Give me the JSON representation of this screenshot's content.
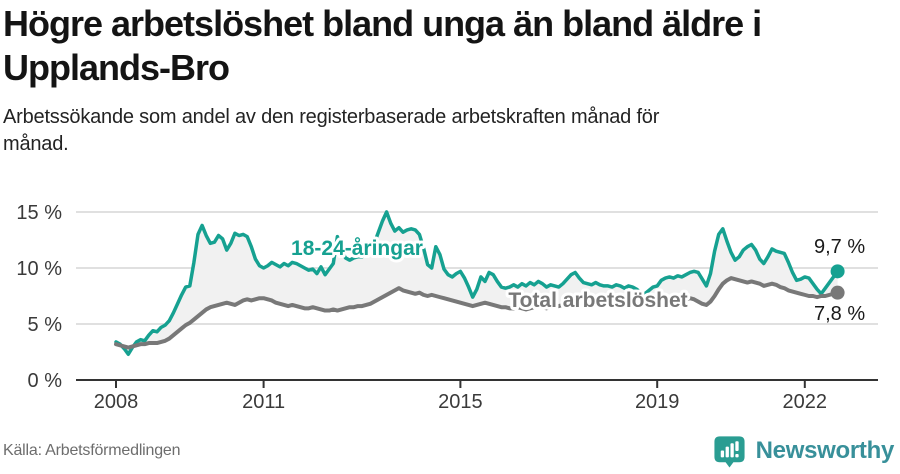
{
  "header": {
    "title_lines": [
      "Högre arbetslöshet bland unga än bland äldre i",
      "Upplands-Bro"
    ],
    "subtitle": "Arbetssökande som andel av den registerbaserade arbetskraften månad för månad."
  },
  "footer": {
    "source": "Källa: Arbetsförmedlingen",
    "brand_name": "Newsworthy",
    "brand_icon": "newsworthy-speech-bubble-bar-chart-icon"
  },
  "colors": {
    "young_line": "#16a191",
    "total_line": "#787878",
    "band_fill": "#f1f1f1",
    "grid": "#e0e0e0",
    "axis": "#333333",
    "tick_text": "#3a3a3a",
    "end_label_text": "#1a1a1a",
    "brand_icon": "#2a9d92",
    "brand_text": "#38909a"
  },
  "chart_data": {
    "type": "line",
    "title": "Högre arbetslöshet bland unga än bland äldre i Upplands-Bro",
    "subtitle": "Arbetssökande som andel av den registerbaserade arbetskraften månad för månad",
    "unit": "%",
    "x_start": "2008-01",
    "x_end": "2022-09",
    "x_frequency": "monthly",
    "ylim": [
      0,
      16
    ],
    "grid": true,
    "legend_position": "inline-labels",
    "y_ticks": [
      {
        "value": 0,
        "label": "0 %"
      },
      {
        "value": 5,
        "label": "5 %"
      },
      {
        "value": 10,
        "label": "10 %"
      },
      {
        "value": 15,
        "label": "15 %"
      }
    ],
    "x_ticks": [
      {
        "year": 2008,
        "label": "2008"
      },
      {
        "year": 2011,
        "label": "2011"
      },
      {
        "year": 2015,
        "label": "2015"
      },
      {
        "year": 2019,
        "label": "2019"
      },
      {
        "year": 2022,
        "label": "2022"
      }
    ],
    "series": [
      {
        "name": "18-24-åringar",
        "color": "#16a191",
        "end_label": "9,7 %",
        "end_value": 9.7,
        "values": [
          3.4,
          3.2,
          2.8,
          2.3,
          2.9,
          3.4,
          3.6,
          3.5,
          4.0,
          4.4,
          4.3,
          4.7,
          4.9,
          5.3,
          6.0,
          6.8,
          7.6,
          8.3,
          8.4,
          10.5,
          13.0,
          13.8,
          12.9,
          12.2,
          12.3,
          12.9,
          12.6,
          11.6,
          12.2,
          13.1,
          12.9,
          13.0,
          12.8,
          11.9,
          10.8,
          10.2,
          10.0,
          10.2,
          10.5,
          10.3,
          10.1,
          10.4,
          10.2,
          10.5,
          10.4,
          10.2,
          10.0,
          9.8,
          9.9,
          9.5,
          10.1,
          9.4,
          9.9,
          10.4,
          12.8,
          11.5,
          10.9,
          10.7,
          10.9,
          11.0,
          11.0,
          11.2,
          11.5,
          12.2,
          13.2,
          14.2,
          15.0,
          14.0,
          13.3,
          13.6,
          13.2,
          13.4,
          13.5,
          13.4,
          13.0,
          11.8,
          10.3,
          10.0,
          11.9,
          11.2,
          9.9,
          9.4,
          9.2,
          9.5,
          9.7,
          9.1,
          8.3,
          7.4,
          8.1,
          9.2,
          8.8,
          9.6,
          9.4,
          8.8,
          8.3,
          8.2,
          8.3,
          8.5,
          8.3,
          8.6,
          8.4,
          8.7,
          8.5,
          8.8,
          8.6,
          8.3,
          8.5,
          8.4,
          8.3,
          8.6,
          9.0,
          9.4,
          9.6,
          9.1,
          8.7,
          8.6,
          8.5,
          8.7,
          8.5,
          8.4,
          8.4,
          8.3,
          8.5,
          8.4,
          8.2,
          8.4,
          8.3,
          8.1,
          7.8,
          7.7,
          8.0,
          8.3,
          8.4,
          8.9,
          9.1,
          9.2,
          9.1,
          9.3,
          9.2,
          9.4,
          9.6,
          9.7,
          9.6,
          9.0,
          8.4,
          9.5,
          11.5,
          13.0,
          13.5,
          12.4,
          11.4,
          10.7,
          11.0,
          11.6,
          11.9,
          12.1,
          11.6,
          10.8,
          10.4,
          11.0,
          11.7,
          11.5,
          11.4,
          11.3,
          10.5,
          9.6,
          8.9,
          9.0,
          9.2,
          9.1,
          8.6,
          8.1,
          7.7,
          8.2,
          8.7,
          9.2,
          9.7
        ]
      },
      {
        "name": "Total arbetslöshet",
        "color": "#787878",
        "end_label": "7,8 %",
        "end_value": 7.8,
        "values": [
          3.2,
          3.1,
          3.0,
          2.9,
          3.0,
          3.1,
          3.2,
          3.2,
          3.3,
          3.3,
          3.3,
          3.4,
          3.5,
          3.7,
          4.0,
          4.3,
          4.6,
          4.9,
          5.1,
          5.4,
          5.7,
          6.0,
          6.3,
          6.5,
          6.6,
          6.7,
          6.8,
          6.9,
          6.8,
          6.7,
          6.9,
          7.1,
          7.2,
          7.1,
          7.2,
          7.3,
          7.3,
          7.2,
          7.1,
          6.9,
          6.8,
          6.7,
          6.6,
          6.7,
          6.6,
          6.5,
          6.4,
          6.4,
          6.5,
          6.4,
          6.3,
          6.2,
          6.2,
          6.3,
          6.2,
          6.3,
          6.4,
          6.5,
          6.5,
          6.6,
          6.6,
          6.7,
          6.8,
          7.0,
          7.2,
          7.4,
          7.6,
          7.8,
          8.0,
          8.2,
          8.0,
          7.9,
          7.8,
          7.7,
          7.8,
          7.6,
          7.5,
          7.6,
          7.5,
          7.4,
          7.3,
          7.2,
          7.1,
          7.0,
          6.9,
          6.8,
          6.7,
          6.6,
          6.7,
          6.8,
          6.9,
          6.8,
          6.7,
          6.6,
          6.5,
          6.5,
          6.4,
          6.4,
          6.5,
          6.4,
          6.3,
          6.4,
          6.5,
          6.6,
          6.5,
          6.4,
          6.5,
          6.6,
          6.6,
          6.7,
          6.8,
          6.9,
          7.0,
          6.9,
          6.8,
          6.9,
          7.0,
          7.1,
          7.0,
          7.1,
          7.1,
          7.2,
          7.1,
          7.0,
          6.9,
          7.0,
          7.1,
          7.0,
          6.9,
          6.8,
          6.9,
          7.0,
          7.0,
          7.1,
          7.2,
          7.2,
          7.3,
          7.2,
          7.1,
          7.2,
          7.3,
          7.2,
          7.0,
          6.8,
          6.7,
          7.0,
          7.5,
          8.1,
          8.6,
          8.9,
          9.1,
          9.0,
          8.9,
          8.8,
          8.7,
          8.8,
          8.7,
          8.6,
          8.4,
          8.5,
          8.6,
          8.5,
          8.3,
          8.2,
          8.0,
          7.9,
          7.8,
          7.7,
          7.6,
          7.5,
          7.5,
          7.4,
          7.5,
          7.5,
          7.6,
          7.7,
          7.8
        ]
      }
    ]
  }
}
